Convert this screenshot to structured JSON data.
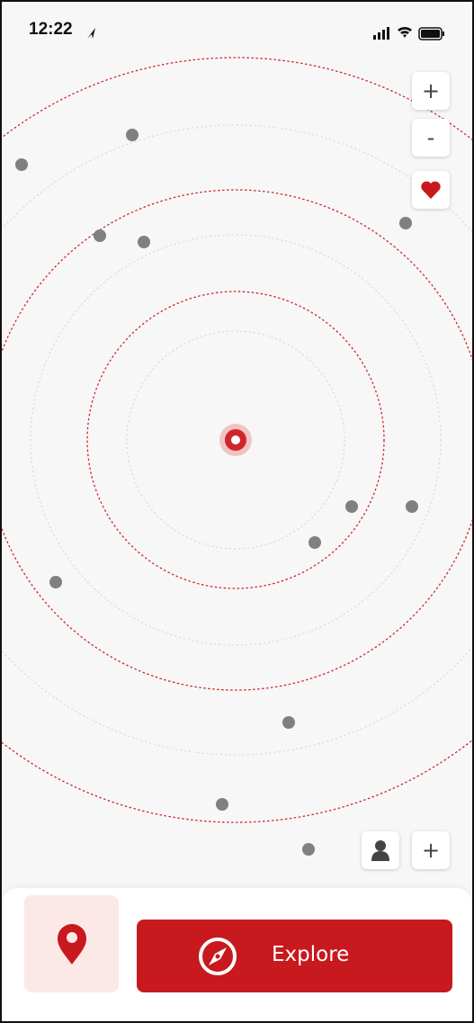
{
  "status_bar": {
    "time": "12:22"
  },
  "map_controls": {
    "zoom_in": "+",
    "zoom_out": "-"
  },
  "bottom_controls": {
    "add": "+"
  },
  "explore_button": {
    "label": "Explore"
  }
}
